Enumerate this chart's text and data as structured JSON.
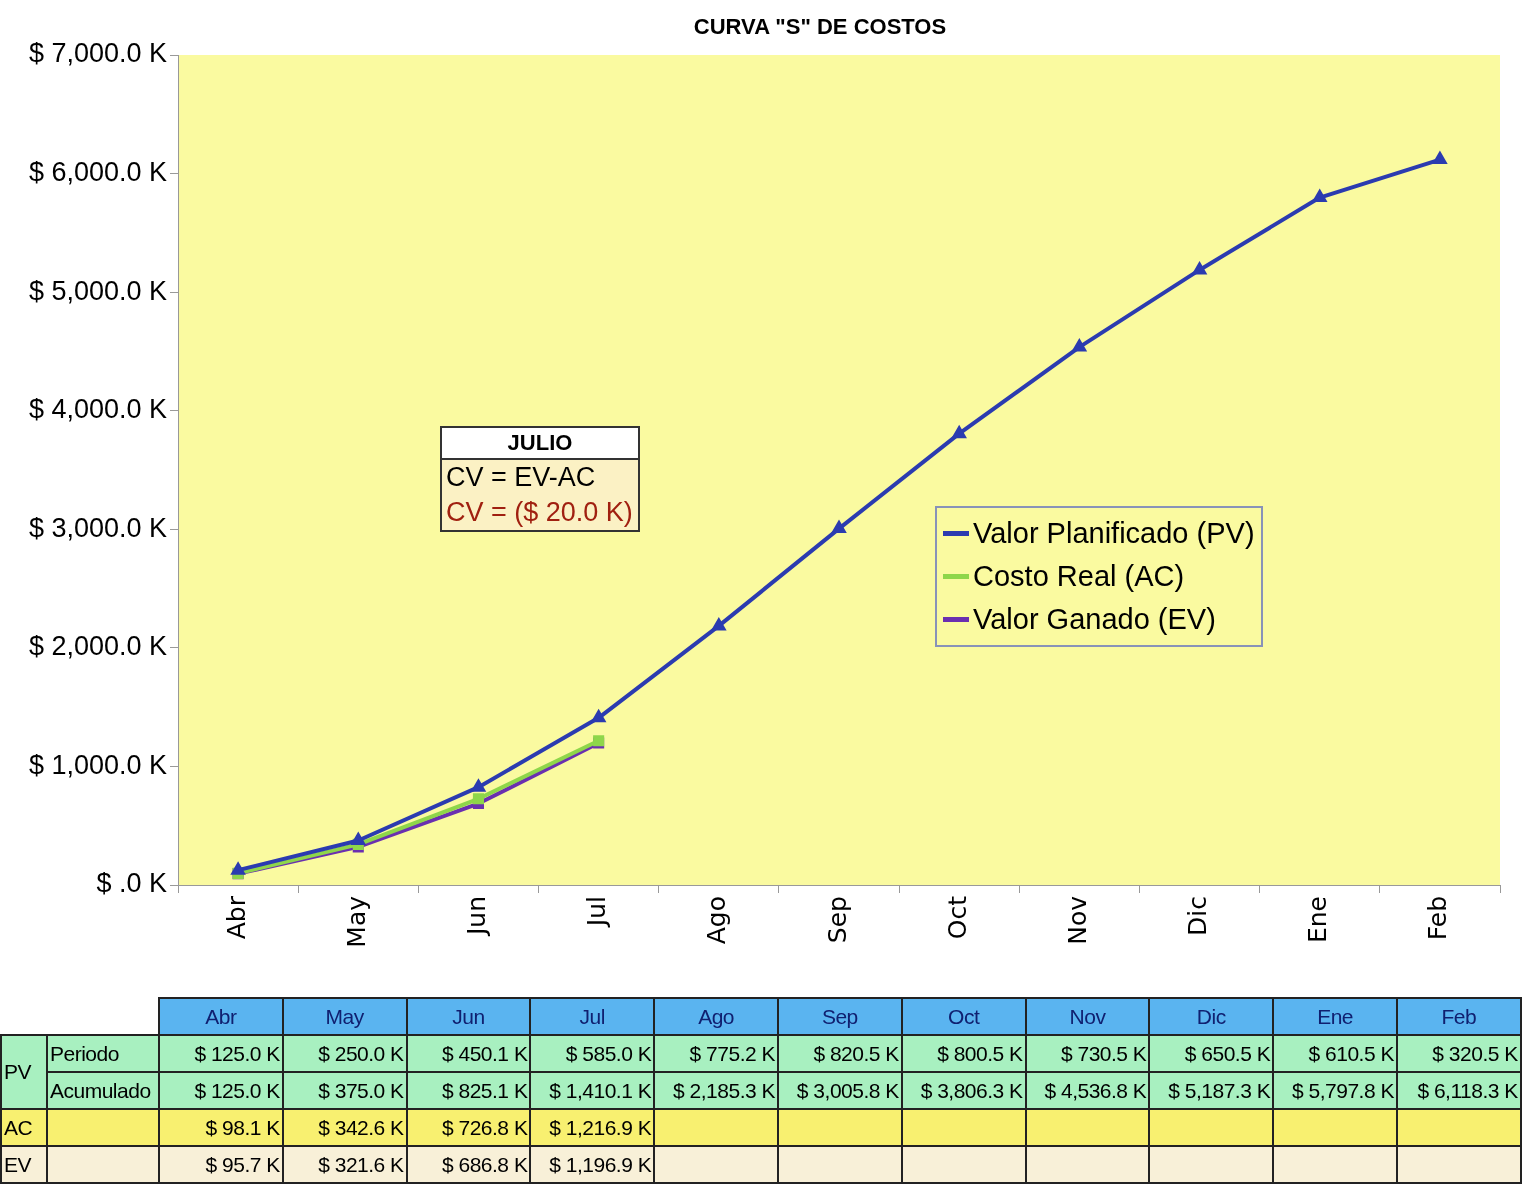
{
  "chart_data": {
    "type": "line",
    "title": "CURVA \"S\" DE COSTOS",
    "categories": [
      "Abr",
      "May",
      "Jun",
      "Jul",
      "Ago",
      "Sep",
      "Oct",
      "Nov",
      "Dic",
      "Ene",
      "Feb"
    ],
    "series": [
      {
        "name": "Valor Planificado (PV)",
        "color": "#2b3bb0",
        "marker": "triangle",
        "values": [
          125.0,
          375.0,
          825.1,
          1410.1,
          2185.3,
          3005.8,
          3806.3,
          4536.8,
          5187.3,
          5797.8,
          6118.3
        ],
        "value_labels": [
          "$ 125.0 K",
          "$ 375.0 K",
          "$ 825.1 K",
          "$ 1,410.1 K",
          "$ 2,185.3 K",
          "$ 3,005.8 K",
          "$ 3,806.3 K",
          "$ 4,536.8 K",
          "$ 5,187.3 K",
          "$ 5,797.8 K",
          "$ 6,118.3 K"
        ]
      },
      {
        "name": "Costo Real (AC)",
        "color": "#8ed64a",
        "marker": "square",
        "values": [
          98.1,
          342.6,
          726.8,
          1216.9,
          null,
          null,
          null,
          null,
          null,
          null,
          null
        ],
        "value_labels": [
          "$ 98.1 K",
          "$ 342.6 K",
          "$ 726.8 K",
          "$ 1,216.9 K",
          null,
          null,
          null,
          null,
          null,
          null,
          null
        ]
      },
      {
        "name": "Valor Ganado (EV)",
        "color": "#6a2fb0",
        "marker": "square",
        "values": [
          95.7,
          321.6,
          686.8,
          1196.9,
          null,
          null,
          null,
          null,
          null,
          null,
          null
        ],
        "value_labels": [
          "$ 95.7 K",
          "$ 321.6 K",
          "$ 686.8 K",
          "$ 1,196.9 K",
          null,
          null,
          null,
          null,
          null,
          null,
          null
        ]
      }
    ],
    "ylim": [
      0,
      7000
    ],
    "yticks": [
      {
        "value": 0,
        "label": "$ .0 K"
      },
      {
        "value": 1000,
        "label": "$ 1,000.0 K"
      },
      {
        "value": 2000,
        "label": "$ 2,000.0 K"
      },
      {
        "value": 3000,
        "label": "$ 3,000.0 K"
      },
      {
        "value": 4000,
        "label": "$ 4,000.0 K"
      },
      {
        "value": 5000,
        "label": "$ 5,000.0 K"
      },
      {
        "value": 6000,
        "label": "$ 6,000.0 K"
      },
      {
        "value": 7000,
        "label": "$ 7,000.0 K"
      }
    ],
    "grid": false,
    "legend": "right",
    "line_style": "solid",
    "annotations": [
      "JULIO",
      "CV =   EV-AC",
      "CV = ($ 20.0 K)",
      "PV",
      "Periodo",
      "Acumulado",
      "AC",
      "EV",
      "$ 125.0 K",
      "$ 250.0 K",
      "$ 450.1 K",
      "$ 585.0 K",
      "$ 775.2 K",
      "$ 820.5 K",
      "$ 800.5 K",
      "$ 730.5 K",
      "$ 650.5 K",
      "$ 610.5 K",
      "$ 320.5 K"
    ]
  }
}
